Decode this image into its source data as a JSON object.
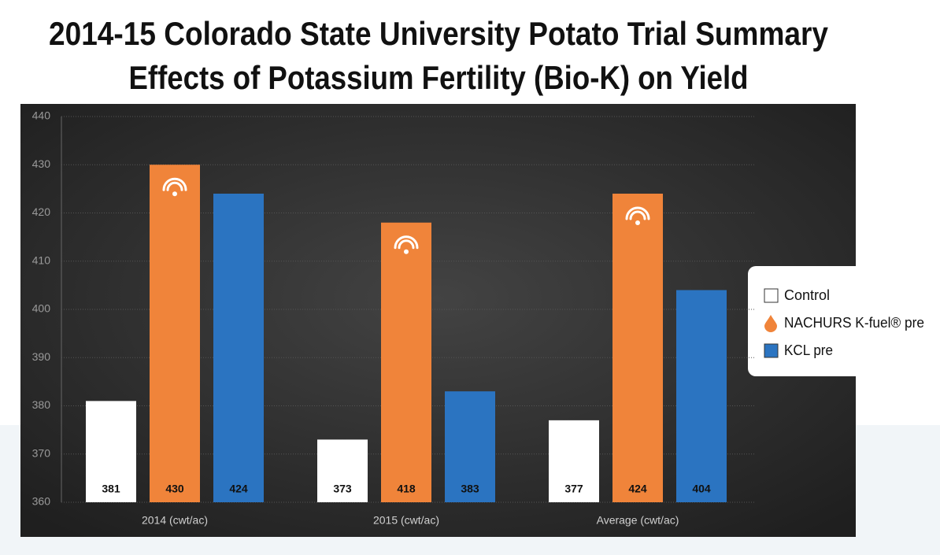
{
  "chart_data": {
    "type": "bar",
    "title": "2014-15 Colorado State University Potato Trial Summary",
    "subtitle": "Effects of Potassium Fertility (Bio-K) on Yield",
    "categories": [
      "2014 (cwt/ac)",
      "2015 (cwt/ac)",
      "Average (cwt/ac)"
    ],
    "series": [
      {
        "name": "Control",
        "color": "#ffffff",
        "values": [
          381,
          373,
          377
        ]
      },
      {
        "name": "NACHURS K-fuel® pre",
        "color": "#f0843a",
        "values": [
          430,
          418,
          424
        ]
      },
      {
        "name": "KCL pre",
        "color": "#2b74c1",
        "values": [
          424,
          383,
          404
        ]
      }
    ],
    "ylim": [
      360,
      440
    ],
    "yticks": [
      360,
      370,
      380,
      390,
      400,
      410,
      420,
      430,
      440
    ],
    "grid": true,
    "legend": "right"
  }
}
